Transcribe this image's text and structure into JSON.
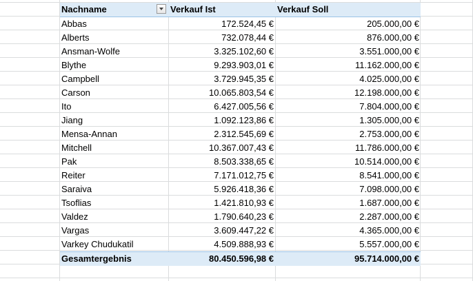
{
  "pivot": {
    "headers": {
      "name": "Nachname",
      "actual": "Verkauf Ist",
      "target": "Verkauf Soll"
    },
    "rows": [
      {
        "name": "Abbas",
        "actual": "172.524,45 €",
        "target": "205.000,00 €"
      },
      {
        "name": "Alberts",
        "actual": "732.078,44 €",
        "target": "876.000,00 €"
      },
      {
        "name": "Ansman-Wolfe",
        "actual": "3.325.102,60 €",
        "target": "3.551.000,00 €"
      },
      {
        "name": "Blythe",
        "actual": "9.293.903,01 €",
        "target": "11.162.000,00 €"
      },
      {
        "name": "Campbell",
        "actual": "3.729.945,35 €",
        "target": "4.025.000,00 €"
      },
      {
        "name": "Carson",
        "actual": "10.065.803,54 €",
        "target": "12.198.000,00 €"
      },
      {
        "name": "Ito",
        "actual": "6.427.005,56 €",
        "target": "7.804.000,00 €"
      },
      {
        "name": "Jiang",
        "actual": "1.092.123,86 €",
        "target": "1.305.000,00 €"
      },
      {
        "name": "Mensa-Annan",
        "actual": "2.312.545,69 €",
        "target": "2.753.000,00 €"
      },
      {
        "name": "Mitchell",
        "actual": "10.367.007,43 €",
        "target": "11.786.000,00 €"
      },
      {
        "name": "Pak",
        "actual": "8.503.338,65 €",
        "target": "10.514.000,00 €"
      },
      {
        "name": "Reiter",
        "actual": "7.171.012,75 €",
        "target": "8.541.000,00 €"
      },
      {
        "name": "Saraiva",
        "actual": "5.926.418,36 €",
        "target": "7.098.000,00 €"
      },
      {
        "name": "Tsoflias",
        "actual": "1.421.810,93 €",
        "target": "1.687.000,00 €"
      },
      {
        "name": "Valdez",
        "actual": "1.790.640,23 €",
        "target": "2.287.000,00 €"
      },
      {
        "name": "Vargas",
        "actual": "3.609.447,22 €",
        "target": "4.365.000,00 €"
      },
      {
        "name": "Varkey Chudukatil",
        "actual": "4.509.888,93 €",
        "target": "5.557.000,00 €"
      }
    ],
    "total": {
      "name": "Gesamtergebnis",
      "actual": "80.450.596,98 €",
      "target": "95.714.000,00 €"
    }
  },
  "filter_icon": "dropdown-arrow",
  "colors": {
    "header_fill": "#ddebf7",
    "header_border": "#9bc2e6",
    "gridline": "#dadcdd"
  }
}
